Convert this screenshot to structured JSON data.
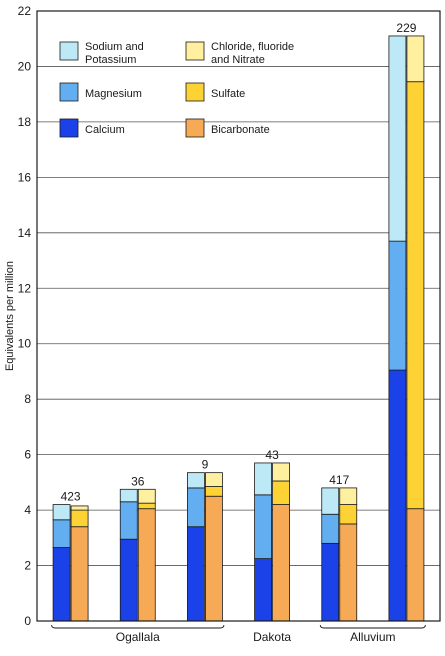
{
  "chart_data": {
    "type": "bar",
    "stacked": true,
    "grouped_pairs": true,
    "title": "",
    "ylabel": "Equivalents per million",
    "xlabel": "",
    "ylim": [
      0,
      22
    ],
    "yticks": [
      0,
      2,
      4,
      6,
      8,
      10,
      12,
      14,
      16,
      18,
      20,
      22
    ],
    "grid": "horizontal",
    "legend": {
      "placement": "top-left",
      "entries": [
        {
          "key": "sodium_potassium",
          "line1": "Sodium and",
          "line2": "Potassium",
          "color": "#bde9f7"
        },
        {
          "key": "chloride",
          "line1": "Chloride, fluoride",
          "line2": "and Nitrate",
          "color": "#fff0a0"
        },
        {
          "key": "magnesium",
          "line1": "Magnesium",
          "line2": "",
          "color": "#62aef0"
        },
        {
          "key": "sulfate",
          "line1": "Sulfate",
          "line2": "",
          "color": "#fdd235"
        },
        {
          "key": "calcium",
          "line1": "Calcium",
          "line2": "",
          "color": "#1b42e8"
        },
        {
          "key": "bicarbonate",
          "line1": "Bicarbonate",
          "line2": "",
          "color": "#f7aa55"
        }
      ]
    },
    "samples": [
      {
        "label": "423",
        "cations": {
          "calcium": 2.65,
          "magnesium": 1.0,
          "sodium_potassium": 0.55
        },
        "anions": {
          "bicarbonate": 3.4,
          "sulfate": 0.6,
          "chloride": 0.15
        }
      },
      {
        "label": "36",
        "cations": {
          "calcium": 2.95,
          "magnesium": 1.35,
          "sodium_potassium": 0.45
        },
        "anions": {
          "bicarbonate": 4.05,
          "sulfate": 0.2,
          "chloride": 0.5
        }
      },
      {
        "label": "9",
        "cations": {
          "calcium": 3.4,
          "magnesium": 1.4,
          "sodium_potassium": 0.55
        },
        "anions": {
          "bicarbonate": 4.5,
          "sulfate": 0.35,
          "chloride": 0.5
        }
      },
      {
        "label": "43",
        "cations": {
          "calcium": 2.25,
          "magnesium": 2.3,
          "sodium_potassium": 1.15
        },
        "anions": {
          "bicarbonate": 4.2,
          "sulfate": 0.85,
          "chloride": 0.65
        }
      },
      {
        "label": "417",
        "cations": {
          "calcium": 2.8,
          "magnesium": 1.05,
          "sodium_potassium": 0.95
        },
        "anions": {
          "bicarbonate": 3.5,
          "sulfate": 0.7,
          "chloride": 0.6
        }
      },
      {
        "label": "229",
        "cations": {
          "calcium": 9.05,
          "magnesium": 4.65,
          "sodium_potassium": 7.4
        },
        "anions": {
          "bicarbonate": 4.05,
          "sulfate": 15.4,
          "chloride": 1.65
        }
      }
    ],
    "groups": [
      {
        "label": "Ogallala",
        "first": 0,
        "last": 2
      },
      {
        "label": "Dakota",
        "first": 3,
        "last": 3
      },
      {
        "label": "Alluvium",
        "first": 4,
        "last": 5
      }
    ]
  }
}
